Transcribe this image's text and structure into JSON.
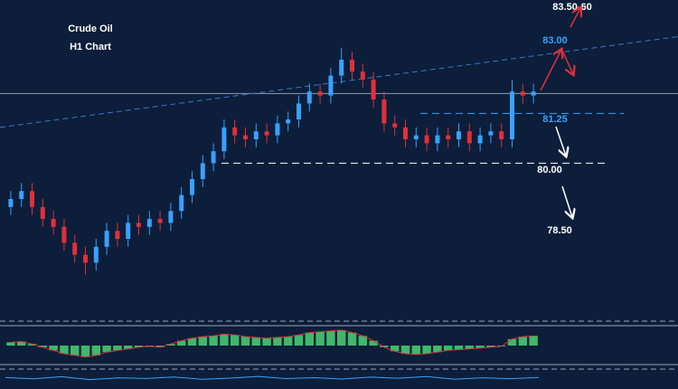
{
  "chart_data": [
    {
      "type": "candlestick",
      "title": "Crude Oil",
      "subtitle": "H1 Chart",
      "up_color": "#3aa0ff",
      "down_color": "#e0303a",
      "ylim": [
        76.1,
        84.1
      ],
      "open": [
        78.9,
        79.1,
        79.3,
        78.9,
        78.6,
        78.4,
        78.0,
        77.7,
        77.5,
        77.9,
        78.3,
        78.1,
        78.5,
        78.4,
        78.6,
        78.5,
        78.8,
        79.2,
        79.6,
        80.0,
        80.3,
        80.9,
        80.7,
        80.6,
        80.8,
        80.7,
        81.0,
        81.1,
        81.5,
        81.8,
        81.7,
        82.2,
        82.6,
        82.3,
        82.1,
        81.6,
        81.0,
        80.9,
        80.6,
        80.7,
        80.5,
        80.7,
        80.6,
        80.8,
        80.5,
        80.7,
        80.8,
        80.6,
        81.8,
        81.7
      ],
      "high": [
        79.3,
        79.5,
        79.5,
        79.1,
        78.8,
        78.6,
        78.2,
        77.9,
        78.1,
        78.5,
        78.5,
        78.7,
        78.7,
        78.8,
        78.8,
        79.0,
        79.4,
        79.8,
        80.2,
        80.5,
        81.1,
        81.1,
        80.9,
        81.0,
        81.0,
        81.2,
        81.3,
        81.7,
        82.0,
        82.0,
        82.4,
        82.9,
        82.8,
        82.5,
        82.3,
        81.8,
        81.2,
        81.1,
        80.9,
        80.9,
        80.9,
        80.9,
        81.0,
        81.0,
        80.9,
        81.0,
        81.0,
        82.1,
        82.0,
        82.0
      ],
      "low": [
        78.7,
        78.9,
        78.7,
        78.4,
        78.2,
        77.8,
        77.5,
        77.2,
        77.3,
        77.7,
        77.9,
        77.9,
        78.2,
        78.2,
        78.3,
        78.3,
        78.6,
        79.0,
        79.4,
        79.8,
        80.1,
        80.5,
        80.4,
        80.4,
        80.5,
        80.5,
        80.8,
        80.9,
        81.3,
        81.5,
        81.5,
        82.0,
        82.1,
        81.9,
        81.4,
        80.8,
        80.7,
        80.4,
        80.4,
        80.3,
        80.3,
        80.4,
        80.4,
        80.3,
        80.3,
        80.5,
        80.4,
        80.4,
        81.5,
        81.5
      ],
      "close": [
        79.1,
        79.3,
        78.9,
        78.6,
        78.4,
        78.0,
        77.7,
        77.5,
        77.9,
        78.3,
        78.1,
        78.5,
        78.4,
        78.6,
        78.5,
        78.8,
        79.2,
        79.6,
        80.0,
        80.3,
        80.9,
        80.7,
        80.6,
        80.8,
        80.7,
        81.0,
        81.1,
        81.5,
        81.8,
        81.7,
        82.2,
        82.6,
        82.3,
        82.1,
        81.6,
        81.0,
        80.9,
        80.6,
        80.7,
        80.5,
        80.7,
        80.6,
        80.8,
        80.5,
        80.7,
        80.8,
        80.6,
        81.8,
        81.7,
        81.8
      ],
      "price_line": 81.75,
      "trendline": [
        80.9,
        83.18
      ],
      "levels": [
        {
          "label": "83.50-60",
          "value": 83.55,
          "color": "#ffffff"
        },
        {
          "label": "83.00",
          "value": 83.0,
          "color": "#3aa0ff"
        },
        {
          "label": "81.25",
          "value": 81.25,
          "color": "#3aa0ff"
        },
        {
          "label": "80.00",
          "value": 80.0,
          "color": "#ffffff"
        },
        {
          "label": "78.50",
          "value": 78.5,
          "color": "#ffffff"
        }
      ]
    },
    {
      "type": "bar",
      "color": "#3fb86a",
      "line_color": "#e0303a",
      "ylim": [
        -1,
        1
      ],
      "values": [
        0.2,
        0.25,
        0.1,
        -0.1,
        -0.3,
        -0.5,
        -0.6,
        -0.7,
        -0.6,
        -0.4,
        -0.3,
        -0.2,
        -0.1,
        -0.05,
        -0.1,
        0.1,
        0.3,
        0.45,
        0.55,
        0.6,
        0.7,
        0.65,
        0.55,
        0.5,
        0.45,
        0.5,
        0.55,
        0.65,
        0.8,
        0.85,
        0.9,
        0.95,
        0.8,
        0.6,
        0.3,
        -0.1,
        -0.35,
        -0.5,
        -0.55,
        -0.5,
        -0.4,
        -0.3,
        -0.25,
        -0.2,
        -0.15,
        -0.1,
        -0.05,
        0.4,
        0.55,
        0.6
      ]
    },
    {
      "type": "line",
      "color": "#3aa0ff",
      "ylim": [
        0,
        100
      ],
      "values": [
        55,
        45,
        60,
        40,
        52,
        48,
        58,
        42,
        50,
        62,
        47,
        53,
        44,
        57,
        49,
        61,
        43,
        52,
        46,
        55
      ]
    }
  ]
}
